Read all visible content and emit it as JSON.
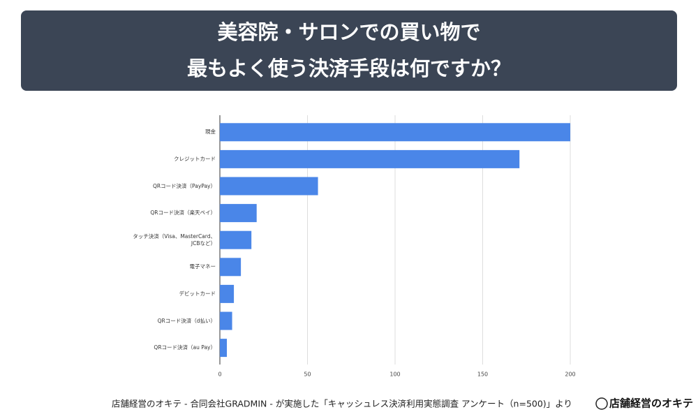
{
  "chart_data": {
    "type": "bar",
    "orientation": "horizontal",
    "title": [
      "美容院・サロンでの買い物で",
      "最もよく使う決済手段は何ですか？"
    ],
    "categories": [
      "現金",
      "クレジットカード",
      "QRコード決済（PayPay）",
      "QRコード決済（楽天ペイ）",
      "タッチ決済（Visa、MasterCard、JCBなど）",
      "電子マネー",
      "デビットカード",
      "QRコード決済（d払い）",
      "QRコード決済（au Pay）"
    ],
    "values": [
      200,
      171,
      56,
      21,
      18,
      12,
      8,
      7,
      4
    ],
    "color": "#4a86e8",
    "xlim": [
      0,
      200
    ],
    "xticks": [
      0,
      50,
      100,
      150,
      200
    ],
    "grid": true
  },
  "footer": {
    "source": "店舗経営のオキテ - 合同会社GRADMIN - が実施した「キャッシュレス決済利用実態調査 アンケート（n=500)」より",
    "logo": "店舗経営のオキテ"
  }
}
